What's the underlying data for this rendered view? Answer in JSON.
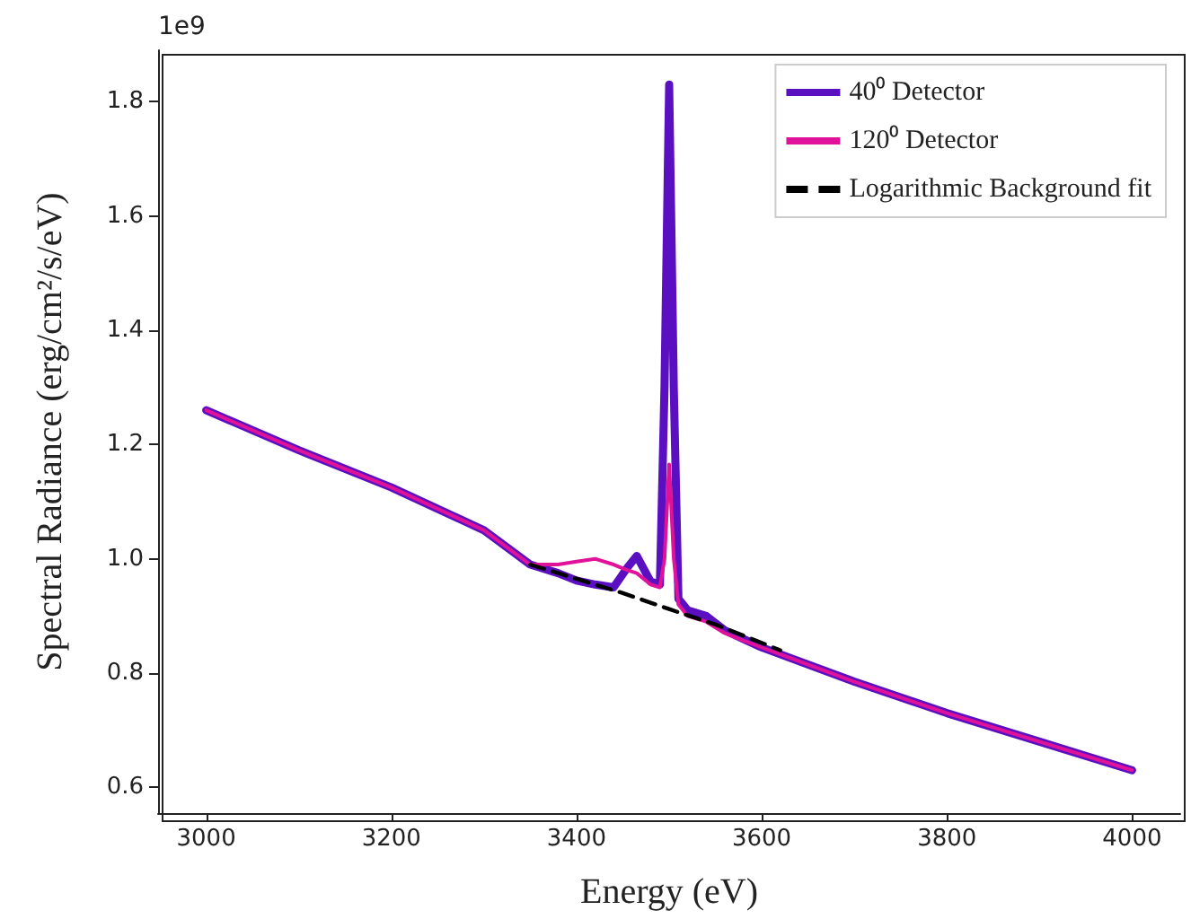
{
  "chart_data": {
    "type": "line",
    "xlabel": "Energy (eV)",
    "ylabel": "Spectral Radiance (erg/cm²/s/eV)",
    "annotations": [
      "1e9"
    ],
    "xlim": [
      2948,
      4052
    ],
    "ylim": [
      0.555,
      1.89
    ],
    "xticks": [
      3000,
      3200,
      3400,
      3600,
      3800,
      4000
    ],
    "yticks": [
      0.6,
      0.8,
      {
        "value": 1,
        "label": "1.0"
      },
      1.2,
      1.4,
      1.6,
      1.8
    ],
    "x": [
      3000,
      3100,
      3200,
      3300,
      3350,
      3380,
      3400,
      3420,
      3440,
      3455,
      3465,
      3480,
      3490,
      3495,
      3500,
      3505,
      3510,
      3520,
      3540,
      3560,
      3580,
      3600,
      3700,
      3800,
      3900,
      4000
    ],
    "series": [
      {
        "name": "40⁰ Detector",
        "color": "#5a10c0",
        "values": [
          1.26,
          1.19,
          1.125,
          1.05,
          0.99,
          0.975,
          0.962,
          0.955,
          0.95,
          0.985,
          1.005,
          0.96,
          0.955,
          1.3,
          1.83,
          1.3,
          0.93,
          0.91,
          0.9,
          0.875,
          0.86,
          0.845,
          0.785,
          0.73,
          0.68,
          0.63
        ]
      },
      {
        "name": "120⁰ Detector",
        "color": "#e0129a",
        "values": [
          1.26,
          1.19,
          1.125,
          1.05,
          0.99,
          0.99,
          0.995,
          1.0,
          0.99,
          0.98,
          0.975,
          0.955,
          0.95,
          1.0,
          1.165,
          1.0,
          0.92,
          0.9,
          0.89,
          0.87,
          0.857,
          0.845,
          0.785,
          0.73,
          0.68,
          0.63
        ]
      },
      {
        "name": "Logarithmic Background fit",
        "color": "#000000",
        "line_style": "dashed",
        "x": [
          3350,
          3400,
          3450,
          3500,
          3550,
          3620
        ],
        "values": [
          0.99,
          0.965,
          0.94,
          0.912,
          0.885,
          0.84
        ]
      }
    ],
    "legend": "top right",
    "grid": false,
    "marker": "none",
    "line_style": "solid"
  }
}
